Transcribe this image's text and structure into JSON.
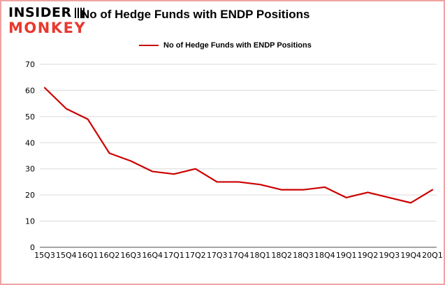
{
  "logo": {
    "line1": "INSIDER",
    "line2": "MONKEY"
  },
  "header": {
    "title": "No of Hedge Funds with ENDP Positions"
  },
  "legend": {
    "label": "No of Hedge Funds with ENDP Positions",
    "color": "#cc0000"
  },
  "chart_data": {
    "type": "line",
    "title": "No of Hedge Funds with ENDP Positions",
    "categories": [
      "15Q3",
      "15Q4",
      "16Q1",
      "16Q2",
      "16Q3",
      "16Q4",
      "17Q1",
      "17Q2",
      "17Q3",
      "17Q4",
      "18Q1",
      "18Q2",
      "18Q3",
      "18Q4",
      "19Q1",
      "19Q2",
      "19Q3",
      "19Q4",
      "20Q1"
    ],
    "series": [
      {
        "name": "No of Hedge Funds with ENDP Positions",
        "color": "#cc0000",
        "values": [
          61,
          53,
          49,
          36,
          33,
          29,
          28,
          30,
          25,
          25,
          24,
          22,
          22,
          23,
          19,
          21,
          19,
          17,
          22
        ]
      }
    ],
    "xlabel": "",
    "ylabel": "",
    "ylim": [
      0,
      70
    ],
    "yticks": [
      0,
      10,
      20,
      30,
      40,
      50,
      60,
      70
    ],
    "grid": true,
    "gridline_color": "#d9d9d9",
    "axis_color": "#4d4d4d",
    "legend_position": "top"
  }
}
